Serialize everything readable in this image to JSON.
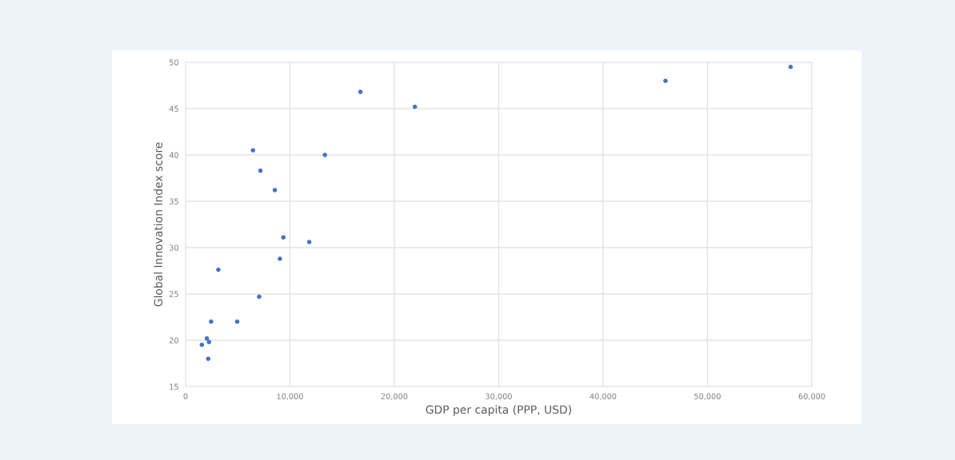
{
  "chart_data": {
    "type": "scatter",
    "xlabel": "GDP per capita (PPP, USD)",
    "ylabel": "Global Innovation Index score",
    "x": [
      1560,
      2040,
      2250,
      2170,
      2450,
      3140,
      4950,
      6460,
      7050,
      7170,
      8550,
      9040,
      9370,
      11850,
      13350,
      16750,
      21970,
      45980,
      57970
    ],
    "values": [
      19.5,
      20.2,
      19.8,
      18.0,
      22.0,
      27.6,
      22.0,
      40.5,
      24.7,
      38.3,
      36.2,
      28.8,
      31.1,
      30.6,
      40.0,
      46.8,
      45.2,
      48.0,
      49.5
    ],
    "color": "#4472c4",
    "marker": "circle",
    "xlim": [
      0,
      60000
    ],
    "xticks": [
      {
        "value": 0,
        "label": "0"
      },
      {
        "value": 10000,
        "label": "10,000"
      },
      {
        "value": 20000,
        "label": "20,000"
      },
      {
        "value": 30000,
        "label": "30,000"
      },
      {
        "value": 40000,
        "label": "40,000"
      },
      {
        "value": 50000,
        "label": "50,000"
      },
      {
        "value": 60000,
        "label": "60,000"
      }
    ],
    "ylim": [
      15,
      50
    ],
    "yticks": [
      15,
      20,
      25,
      30,
      35,
      40,
      45,
      50
    ],
    "grid": true
  }
}
